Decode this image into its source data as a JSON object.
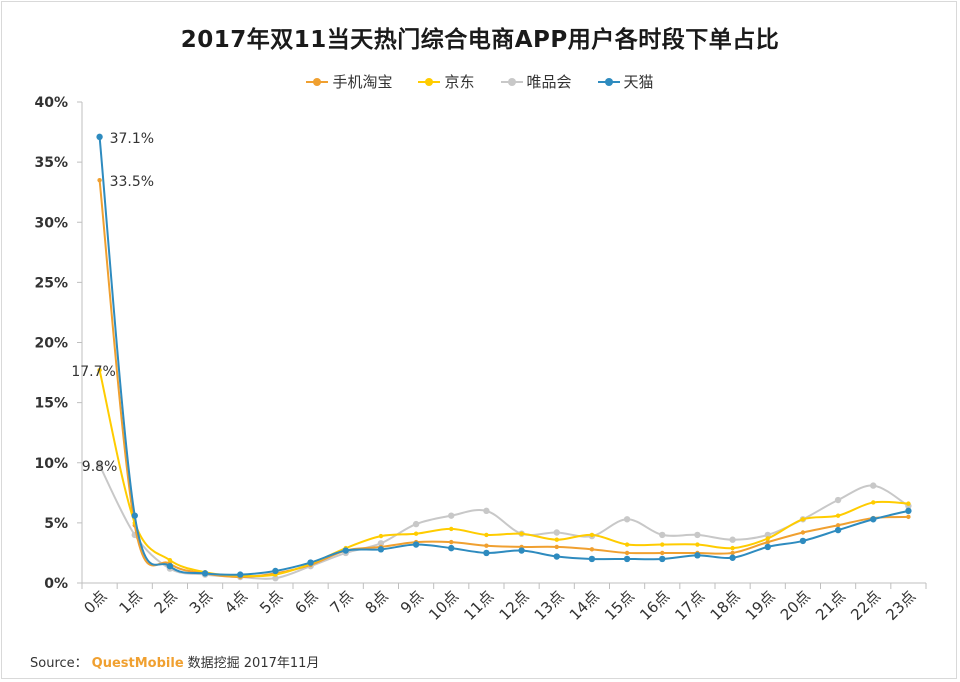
{
  "title": "2017年双11当天热门综合电商APP用户各时段下单占比",
  "source": {
    "prefix": "Source：",
    "brand": "QuestMobile",
    "suffix": "数据挖掘 2017年11月"
  },
  "chart_data": {
    "type": "line",
    "title": "2017年双11当天热门综合电商APP用户各时段下单占比",
    "xlabel": "",
    "ylabel": "",
    "ylim": [
      0,
      40
    ],
    "yticks": [
      "0%",
      "5%",
      "10%",
      "15%",
      "20%",
      "25%",
      "30%",
      "35%",
      "40%"
    ],
    "grid": false,
    "legend_position": "top-center",
    "smooth": true,
    "categories": [
      "0点",
      "1点",
      "2点",
      "3点",
      "4点",
      "5点",
      "6点",
      "7点",
      "8点",
      "9点",
      "10点",
      "11点",
      "12点",
      "13点",
      "14点",
      "15点",
      "16点",
      "17点",
      "18点",
      "19点",
      "20点",
      "21点",
      "22点",
      "23点"
    ],
    "series": [
      {
        "name": "手机淘宝",
        "color": "#f0a030",
        "values": [
          33.5,
          4.8,
          1.6,
          0.8,
          0.5,
          0.8,
          1.5,
          2.7,
          3.0,
          3.4,
          3.4,
          3.1,
          3.0,
          3.0,
          2.8,
          2.5,
          2.5,
          2.5,
          2.5,
          3.4,
          4.2,
          4.8,
          5.4,
          5.5
        ],
        "labels": [
          {
            "index": 0,
            "text": "33.5%"
          }
        ]
      },
      {
        "name": "京东",
        "color": "#ffcc00",
        "values": [
          17.7,
          5.0,
          1.9,
          0.9,
          0.6,
          0.7,
          1.6,
          2.9,
          3.9,
          4.1,
          4.5,
          4.0,
          4.1,
          3.6,
          4.0,
          3.2,
          3.2,
          3.2,
          2.9,
          3.7,
          5.3,
          5.6,
          6.7,
          6.6
        ],
        "labels": [
          {
            "index": 0,
            "text": "17.7%"
          }
        ]
      },
      {
        "name": "唯品会",
        "color": "#c8c8c8",
        "values": [
          9.8,
          4.0,
          1.2,
          0.7,
          0.5,
          0.4,
          1.4,
          2.5,
          3.3,
          4.9,
          5.6,
          6.0,
          4.1,
          4.2,
          3.9,
          5.3,
          4.0,
          4.0,
          3.6,
          4.0,
          5.3,
          6.9,
          8.1,
          6.4
        ],
        "labels": [
          {
            "index": 0,
            "text": "9.8%"
          }
        ]
      },
      {
        "name": "天猫",
        "color": "#2e8bbf",
        "values": [
          37.1,
          5.6,
          1.4,
          0.8,
          0.7,
          1.0,
          1.7,
          2.7,
          2.8,
          3.2,
          2.9,
          2.5,
          2.7,
          2.2,
          2.0,
          2.0,
          2.0,
          2.3,
          2.1,
          3.0,
          3.5,
          4.4,
          5.3,
          6.0
        ],
        "labels": [
          {
            "index": 0,
            "text": "37.1%"
          }
        ]
      }
    ]
  }
}
